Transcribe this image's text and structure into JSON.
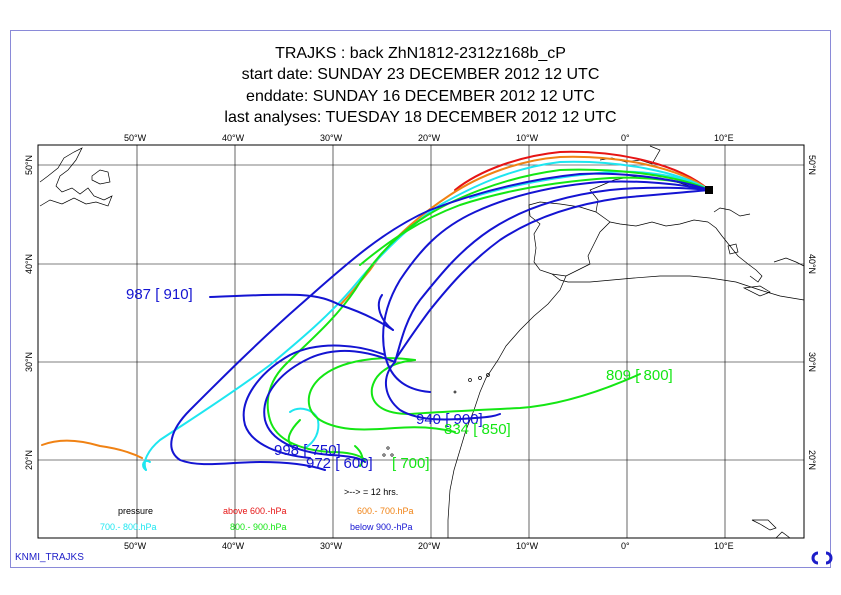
{
  "titles": {
    "line1": "TRAJKS : back ZhN1812-2312z168b_cP",
    "line2": "start date:  SUNDAY    23 DECEMBER  2012 12 UTC",
    "line3": "enddate:  SUNDAY    16 DECEMBER  2012 12 UTC",
    "line4": "last analyses:  TUESDAY   18 DECEMBER  2012 12 UTC"
  },
  "axes": {
    "lon_top": [
      "50°W",
      "40°W",
      "30°W",
      "20°W",
      "10°W",
      "0°",
      "10°E"
    ],
    "lon_bottom": [
      "50°W",
      "40°W",
      "30°W",
      "20°W",
      "10°W",
      "0°",
      "10°E"
    ],
    "lat_left": [
      "50°N",
      "40°N",
      "30°N",
      "20°N"
    ],
    "lat_right": [
      "50°N",
      "40°N",
      "30°N",
      "20°N"
    ]
  },
  "legend": {
    "pressure": "pressure",
    "above600": "above  600.-hPa",
    "r600_700": "600.-      700.hPa",
    "r700_800": "700.-      800.hPa",
    "r800_900": "800.-     900.hPa",
    "below900": "below  900.-hPa",
    "arrow_note": ">--> = 12 hrs."
  },
  "labels": {
    "l987": "987 [ 910]",
    "l809": "809 [ 800]",
    "l940": "940 [ 900]",
    "l834": "834 [ 850]",
    "l998": "998 [ 750]",
    "l972": "972 [ 600]",
    "l700": "[ 700]"
  },
  "footer": "KNMI_TRAJKS",
  "colors": {
    "blue": "#1414d2",
    "green": "#14e614",
    "cyan": "#1ee6f0",
    "orange": "#f08214",
    "red": "#e61414",
    "grid": "#000000"
  }
}
